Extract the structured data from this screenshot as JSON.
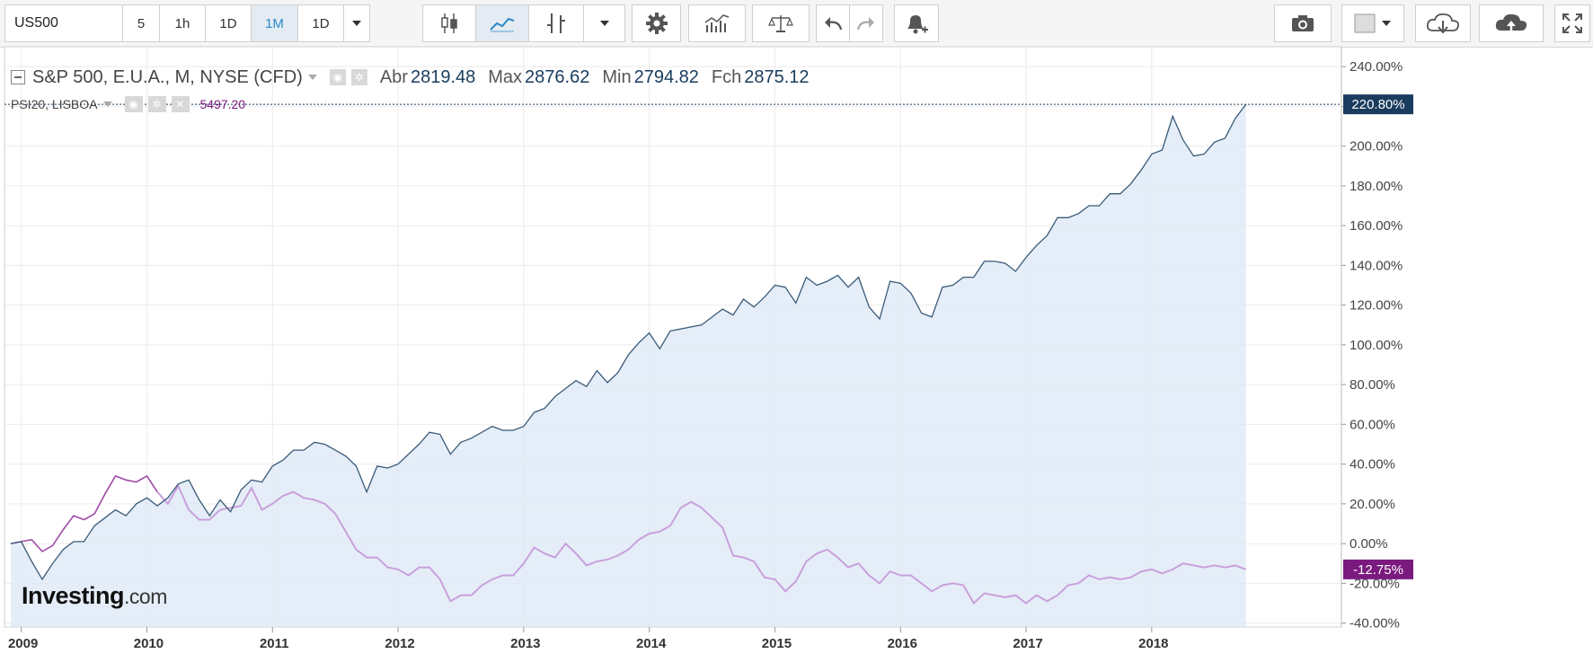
{
  "toolbar": {
    "symbol": "US500",
    "intervals": [
      "5",
      "1h",
      "1D",
      "1M",
      "1D"
    ],
    "active_interval_index": 3,
    "icons": [
      "candlestick-icon",
      "line-chart-icon",
      "bar-chart-icon",
      "chevron-down-icon",
      "gear-icon",
      "indicators-icon",
      "compare-icon",
      "undo-icon",
      "redo-icon",
      "alert-add-icon",
      "camera-icon",
      "color-box-icon",
      "cloud-download-icon",
      "cloud-upload-icon",
      "fullscreen-icon"
    ]
  },
  "legend": {
    "main_title": "S&P 500, E.U.A., M, NYSE (CFD)",
    "open_label": "Abr",
    "open_value": "2819.48",
    "high_label": "Max",
    "high_value": "2876.62",
    "low_label": "Min",
    "low_value": "2794.82",
    "close_label": "Fch",
    "close_value": "2875.12",
    "compare_title": "PSI20, LISBOA",
    "compare_value": "5497.20"
  },
  "logo": {
    "name": "Investing",
    "suffix": ".com"
  },
  "colors": {
    "main_line": "#3a5a78",
    "main_fill": "#dce8f5",
    "compare_line": "#c9a0dc",
    "compare_line_early": "#a04aa8",
    "main_badge": "#1a3c5e",
    "compare_badge": "#7b1a7e",
    "grid": "#ececec"
  },
  "chart_data": {
    "type": "line",
    "x_labels": [
      "2009",
      "2010",
      "2011",
      "2012",
      "2013",
      "2014",
      "2015",
      "2016",
      "2017",
      "2018"
    ],
    "y_ticks": [
      "240.00%",
      "220.00%",
      "200.00%",
      "180.00%",
      "160.00%",
      "140.00%",
      "120.00%",
      "100.00%",
      "80.00%",
      "60.00%",
      "40.00%",
      "20.00%",
      "0.00%",
      "-20.00%",
      "-40.00%"
    ],
    "ylim": [
      -42,
      250
    ],
    "start": "2008-12",
    "frequency": "monthly",
    "grid": true,
    "series": [
      {
        "name": "S&P 500, E.U.A., M, NYSE (CFD)",
        "last_label": "220.80%",
        "values": [
          0,
          1,
          -9,
          -18,
          -10,
          -3,
          1,
          1,
          9,
          13,
          17,
          14,
          20,
          23,
          19,
          23,
          30,
          32,
          22,
          14,
          22,
          16,
          27,
          32,
          31,
          39,
          42,
          47,
          47,
          51,
          50,
          47,
          44,
          39,
          26,
          39,
          38,
          40,
          45,
          50,
          56,
          55,
          45,
          51,
          53,
          56,
          59,
          57,
          57,
          59,
          66,
          68,
          74,
          78,
          82,
          79,
          87,
          81,
          86,
          95,
          101,
          106,
          98,
          107,
          108,
          109,
          110,
          114,
          118,
          115,
          123,
          119,
          124,
          130,
          129,
          121,
          134,
          130,
          132,
          135,
          129,
          134,
          119,
          113,
          132,
          131,
          126,
          116,
          114,
          129,
          130,
          134,
          134,
          142,
          142,
          141,
          137,
          144,
          150,
          155,
          164,
          164,
          166,
          170,
          170,
          176,
          176,
          181,
          188,
          196,
          198,
          215,
          203,
          195,
          196,
          202,
          204,
          214,
          221
        ]
      },
      {
        "name": "PSI20, LISBOA",
        "last_label": "-12.75%",
        "values": [
          0,
          1,
          2,
          -4,
          -1,
          7,
          14,
          12,
          15,
          25,
          34,
          32,
          31,
          34,
          26,
          20,
          29,
          17,
          12,
          12,
          17,
          18,
          19,
          28,
          17,
          20,
          24,
          26,
          23,
          22,
          20,
          15,
          6,
          -3,
          -7,
          -7,
          -12,
          -13,
          -16,
          -12,
          -12,
          -18,
          -29,
          -26,
          -26,
          -21,
          -18,
          -16,
          -16,
          -10,
          -2,
          -5,
          -7,
          0,
          -5,
          -11,
          -9,
          -8,
          -6,
          -3,
          2,
          5,
          6,
          9,
          18,
          21,
          18,
          13,
          8,
          -6,
          -7,
          -9,
          -17,
          -18,
          -24,
          -19,
          -9,
          -5,
          -3,
          -7,
          -12,
          -10,
          -16,
          -20,
          -14,
          -16,
          -16,
          -20,
          -24,
          -21,
          -20,
          -21,
          -30,
          -25,
          -26,
          -27,
          -26,
          -30,
          -26,
          -29,
          -26,
          -21,
          -20,
          -16,
          -18,
          -17,
          -18,
          -17,
          -14,
          -13,
          -15,
          -13,
          -10,
          -11,
          -12,
          -11,
          -12,
          -11,
          -13
        ]
      }
    ]
  }
}
